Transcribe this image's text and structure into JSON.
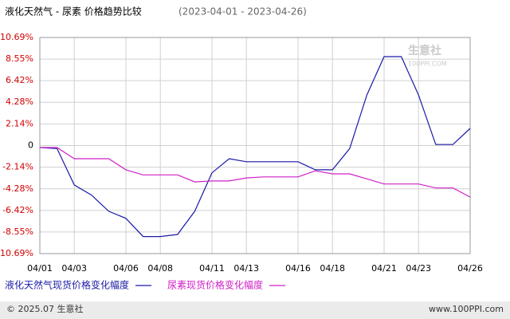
{
  "chart_data": {
    "type": "line",
    "title": "液化天然气 - 尿素 价格趋势比较",
    "subtitle": "(2023-04-01 - 2023-04-26)",
    "categories": [
      "04/01",
      null,
      "04/03",
      null,
      null,
      "04/06",
      null,
      "04/08",
      null,
      null,
      "04/11",
      null,
      "04/13",
      null,
      null,
      "04/16",
      null,
      "04/18",
      null,
      null,
      "04/21",
      null,
      "04/23",
      null,
      null,
      "04/26"
    ],
    "series": [
      {
        "name": "液化天然气现货价格变化幅度",
        "color": "#1a1aa6",
        "values": [
          -0.2,
          -0.3,
          -3.9,
          -4.9,
          -6.5,
          -7.2,
          -9.0,
          -9.0,
          -8.8,
          -6.5,
          -2.7,
          -1.3,
          -1.6,
          -1.6,
          -1.6,
          -1.6,
          -2.4,
          -2.4,
          -0.3,
          5.0,
          8.8,
          8.8,
          5.0,
          0.1,
          0.1,
          1.7
        ]
      },
      {
        "name": "尿素现货价格变化幅度",
        "color": "#d020c8",
        "values": [
          -0.2,
          -0.2,
          -1.3,
          -1.3,
          -1.3,
          -2.4,
          -2.9,
          -2.9,
          -2.9,
          -3.6,
          -3.5,
          -3.5,
          -3.2,
          -3.1,
          -3.1,
          -3.1,
          -2.5,
          -2.8,
          -2.8,
          -3.3,
          -3.8,
          -3.8,
          -3.8,
          -4.2,
          -4.2,
          -5.1
        ]
      }
    ],
    "ylim": [
      -10.69,
      10.69
    ],
    "yticks": [
      {
        "value": 10.69,
        "label": "10.69%"
      },
      {
        "value": 8.55,
        "label": "8.55%"
      },
      {
        "value": 6.42,
        "label": "6.42%"
      },
      {
        "value": 4.28,
        "label": "4.28%"
      },
      {
        "value": 2.14,
        "label": "2.14%"
      },
      0,
      {
        "value": -2.14,
        "label": "-2.14%"
      },
      {
        "value": -4.28,
        "label": "-4.28%"
      },
      {
        "value": -6.42,
        "label": "-6.42%"
      },
      {
        "value": -8.55,
        "label": "-8.55%"
      },
      {
        "value": -10.69,
        "label": "-10.69%"
      }
    ],
    "grid": true,
    "watermark": "生意社",
    "watermark_url": "100PPI.COM",
    "footer_left": "© 2025.07 生意社",
    "footer_right": "www.100PPI.com"
  }
}
